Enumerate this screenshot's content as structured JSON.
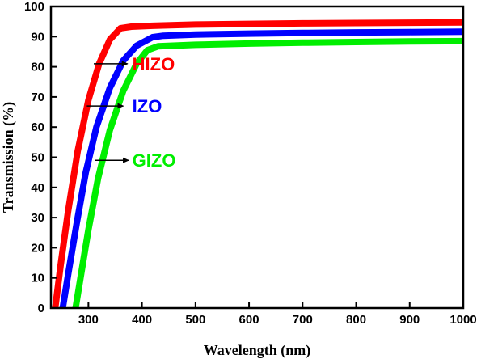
{
  "chart_data": {
    "type": "line",
    "title": "",
    "xlabel": "Wavelength (nm)",
    "ylabel": "Transmission (%)",
    "xlim": [
      230,
      1000
    ],
    "ylim": [
      0,
      100
    ],
    "x_ticks": [
      300,
      400,
      500,
      600,
      700,
      800,
      900,
      1000
    ],
    "y_ticks": [
      0,
      10,
      20,
      30,
      40,
      50,
      60,
      70,
      80,
      90,
      100
    ],
    "grid": false,
    "legend": "none",
    "series": [
      {
        "name": "HIZO",
        "color": "#ff0000",
        "points": [
          [
            238,
            0
          ],
          [
            248,
            14
          ],
          [
            262,
            32
          ],
          [
            280,
            52
          ],
          [
            300,
            69
          ],
          [
            320,
            81
          ],
          [
            340,
            89
          ],
          [
            360,
            92.8
          ],
          [
            380,
            93.3
          ],
          [
            420,
            93.6
          ],
          [
            500,
            94
          ],
          [
            600,
            94.2
          ],
          [
            700,
            94.4
          ],
          [
            800,
            94.5
          ],
          [
            900,
            94.6
          ],
          [
            1000,
            94.7
          ]
        ]
      },
      {
        "name": "IZO",
        "color": "#0000ff",
        "points": [
          [
            252,
            0
          ],
          [
            262,
            11
          ],
          [
            278,
            28
          ],
          [
            295,
            45
          ],
          [
            315,
            60
          ],
          [
            340,
            73
          ],
          [
            365,
            82
          ],
          [
            390,
            87
          ],
          [
            420,
            89.8
          ],
          [
            440,
            90.3
          ],
          [
            500,
            90.7
          ],
          [
            600,
            91
          ],
          [
            700,
            91.2
          ],
          [
            800,
            91.4
          ],
          [
            900,
            91.5
          ],
          [
            1000,
            91.6
          ]
        ]
      },
      {
        "name": "GIZO",
        "color": "#00ee00",
        "points": [
          [
            276,
            0
          ],
          [
            287,
            12
          ],
          [
            300,
            26
          ],
          [
            318,
            43
          ],
          [
            340,
            59
          ],
          [
            365,
            72
          ],
          [
            390,
            81
          ],
          [
            410,
            85.5
          ],
          [
            430,
            86.8
          ],
          [
            500,
            87.3
          ],
          [
            600,
            87.7
          ],
          [
            700,
            88
          ],
          [
            800,
            88.2
          ],
          [
            900,
            88.4
          ],
          [
            1000,
            88.5
          ]
        ]
      }
    ],
    "annotations": [
      {
        "text": "HIZO",
        "color": "#ff0000",
        "arrow_from": [
          310,
          81
        ],
        "arrow_to": [
          373,
          81
        ],
        "text_x": 382
      },
      {
        "text": "IZO",
        "color": "#0000ff",
        "arrow_from": [
          297,
          67
        ],
        "arrow_to": [
          365,
          67
        ],
        "text_x": 382
      },
      {
        "text": "GIZO",
        "color": "#00ee00",
        "arrow_from": [
          312,
          49
        ],
        "arrow_to": [
          375,
          49
        ],
        "text_x": 382
      }
    ]
  }
}
